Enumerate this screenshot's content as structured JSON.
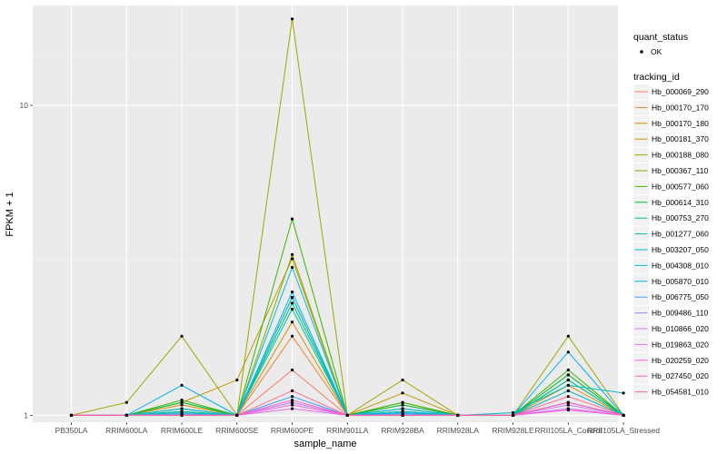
{
  "chart_data": {
    "type": "line",
    "xlabel": "sample_name",
    "ylabel": "FPKM + 1",
    "yscale": "log10",
    "ylim": [
      0.95,
      21
    ],
    "yticks": [
      {
        "value": 1,
        "label": "1"
      },
      {
        "value": 10,
        "label": "10"
      }
    ],
    "grid": true,
    "categories": [
      "PB350LA",
      "RRIM600LA",
      "RRIM600LE",
      "RRIM600SE",
      "RRIM600PE",
      "RRIM901LA",
      "RRIM928BA",
      "RRIM928LA",
      "RRIM928LE",
      "RRII105LA_Control",
      "RRII105LA_Stressed"
    ],
    "legend_shape": {
      "title": "quant_status",
      "items": [
        "OK"
      ],
      "position": "right"
    },
    "legend_color": {
      "title": "tracking_id",
      "position": "right"
    },
    "series": [
      {
        "name": "Hb_000069_290",
        "color": "#F8766D",
        "values": [
          1,
          1,
          1.02,
          1,
          1.4,
          1,
          1.02,
          1,
          1,
          1.1,
          1
        ]
      },
      {
        "name": "Hb_000170_170",
        "color": "#EA8331",
        "values": [
          1,
          1,
          1.05,
          1,
          1.8,
          1,
          1.05,
          1,
          1,
          1.2,
          1
        ]
      },
      {
        "name": "Hb_000170_180",
        "color": "#D89000",
        "values": [
          1,
          1,
          1.08,
          1,
          2.0,
          1,
          1.08,
          1,
          1,
          1.25,
          1
        ]
      },
      {
        "name": "Hb_000181_370",
        "color": "#C09B00",
        "values": [
          1,
          1,
          1.1,
          1.3,
          3.2,
          1,
          1.18,
          1,
          1,
          1.3,
          1
        ]
      },
      {
        "name": "Hb_000188_080",
        "color": "#A3A500",
        "values": [
          1,
          1.1,
          1.8,
          1,
          19,
          1,
          1.3,
          1,
          1,
          1.8,
          1
        ]
      },
      {
        "name": "Hb_000367_110",
        "color": "#7CAE00",
        "values": [
          1,
          1,
          1.1,
          1,
          3.3,
          1,
          1.1,
          1,
          1,
          1.35,
          1
        ]
      },
      {
        "name": "Hb_000577_060",
        "color": "#39B600",
        "values": [
          1,
          1,
          1.12,
          1,
          4.3,
          1,
          1.1,
          1,
          1,
          1.4,
          1
        ]
      },
      {
        "name": "Hb_000614_310",
        "color": "#00BB4E",
        "values": [
          1,
          1,
          1.1,
          1,
          2.4,
          1,
          1.08,
          1,
          1,
          1.35,
          1
        ]
      },
      {
        "name": "Hb_000753_270",
        "color": "#00BF7D",
        "values": [
          1,
          1,
          1.05,
          1,
          2.3,
          1,
          1.05,
          1,
          1,
          1.3,
          1
        ]
      },
      {
        "name": "Hb_001277_060",
        "color": "#00C1A3",
        "values": [
          1,
          1,
          1.03,
          1,
          2.2,
          1,
          1.03,
          1,
          1,
          1.3,
          1
        ]
      },
      {
        "name": "Hb_003207_050",
        "color": "#00BFC4",
        "values": [
          1,
          1,
          1.02,
          1,
          2.4,
          1,
          1.02,
          1,
          1.02,
          1.25,
          1.18
        ]
      },
      {
        "name": "Hb_004308_010",
        "color": "#00BAE0",
        "values": [
          1,
          1,
          1.05,
          1,
          3.0,
          1,
          1.05,
          1,
          1,
          1.2,
          1
        ]
      },
      {
        "name": "Hb_005870_010",
        "color": "#00B0F6",
        "values": [
          1,
          1,
          1.25,
          1,
          2.5,
          1,
          1.02,
          1,
          1,
          1.6,
          1
        ]
      },
      {
        "name": "Hb_006775_050",
        "color": "#35A2FF",
        "values": [
          1,
          1,
          1.01,
          1,
          1.15,
          1,
          1.01,
          1,
          1,
          1.1,
          1
        ]
      },
      {
        "name": "Hb_009486_110",
        "color": "#9590FF",
        "values": [
          1,
          1,
          1,
          1,
          1.1,
          1,
          1,
          1,
          1,
          1.05,
          1
        ]
      },
      {
        "name": "Hb_010866_020",
        "color": "#C77CFF",
        "values": [
          1,
          1,
          1,
          1,
          1.1,
          1,
          1,
          1,
          1,
          1.08,
          1
        ]
      },
      {
        "name": "Hb_019863_020",
        "color": "#E76BF3",
        "values": [
          1,
          1,
          1,
          1,
          1.05,
          1,
          1,
          1,
          1,
          1.05,
          1
        ]
      },
      {
        "name": "Hb_020259_020",
        "color": "#FA62DB",
        "values": [
          1,
          1,
          1,
          1,
          1.08,
          1,
          1,
          1,
          1,
          1.04,
          1
        ]
      },
      {
        "name": "Hb_027450_020",
        "color": "#FF62BC",
        "values": [
          1,
          1,
          1,
          1,
          1.12,
          1,
          1,
          1,
          1,
          1.1,
          1
        ]
      },
      {
        "name": "Hb_054581_010",
        "color": "#FF6C91",
        "values": [
          1,
          1,
          1,
          1,
          1.2,
          1,
          1,
          1,
          1,
          1.15,
          1
        ]
      }
    ]
  }
}
